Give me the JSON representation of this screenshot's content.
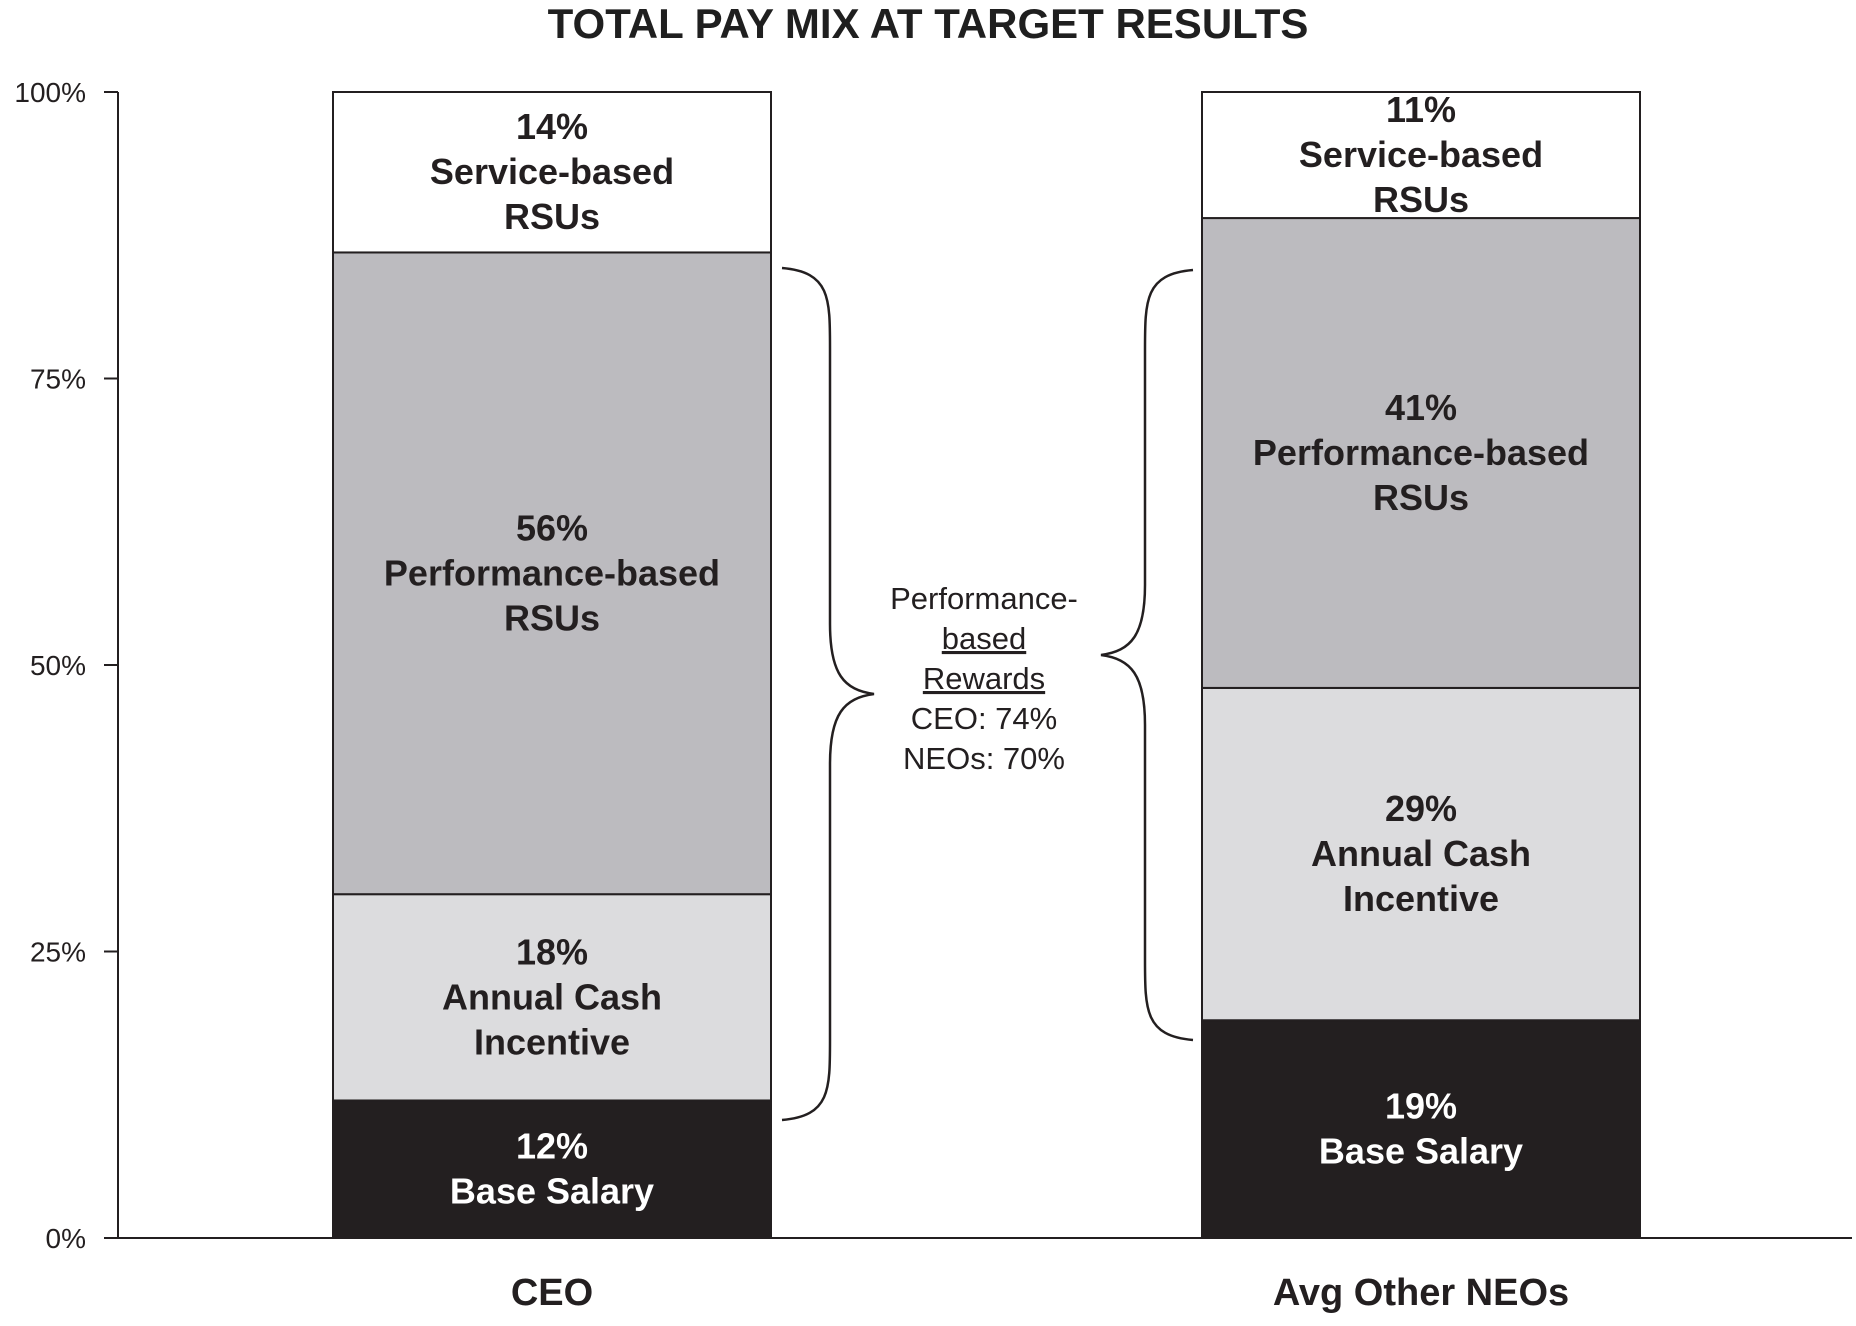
{
  "chart_data": {
    "type": "bar",
    "stacked": true,
    "title": "TOTAL PAY MIX AT TARGET RESULTS",
    "xlabel": "",
    "ylabel": "",
    "ylim": [
      0,
      100
    ],
    "y_ticks": [
      "0%",
      "25%",
      "50%",
      "75%",
      "100%"
    ],
    "categories": [
      "CEO",
      "Avg Other NEOs"
    ],
    "series": [
      {
        "key": "base",
        "values": [
          12,
          19
        ],
        "color": "#231f20",
        "text_color": "#ffffff",
        "labels": [
          [
            "12%",
            "Base Salary"
          ],
          [
            "19%",
            "Base Salary"
          ]
        ]
      },
      {
        "key": "annual",
        "values": [
          18,
          29
        ],
        "color": "#dcdcde",
        "text_color": "#231f20",
        "labels": [
          [
            "18%",
            "Annual Cash",
            "Incentive"
          ],
          [
            "29%",
            "Annual Cash",
            "Incentive"
          ]
        ]
      },
      {
        "key": "perf",
        "values": [
          56,
          41
        ],
        "color": "#bcbbbf",
        "text_color": "#231f20",
        "labels": [
          [
            "56%",
            "Performance-based",
            "RSUs"
          ],
          [
            "41%",
            "Performance-based",
            "RSUs"
          ]
        ]
      },
      {
        "key": "service",
        "values": [
          14,
          11
        ],
        "color": "#ffffff",
        "text_color": "#231f20",
        "labels": [
          [
            "14%",
            "Service-based",
            "RSUs"
          ],
          [
            "11%",
            "Service-based",
            "RSUs"
          ]
        ]
      }
    ],
    "annotation": {
      "lines": [
        "Performance-",
        "based",
        "Rewards",
        "CEO: 74%",
        "NEOs: 70%"
      ],
      "underlined": [
        false,
        true,
        true,
        false,
        false
      ]
    },
    "grid": false,
    "legend": "none"
  }
}
